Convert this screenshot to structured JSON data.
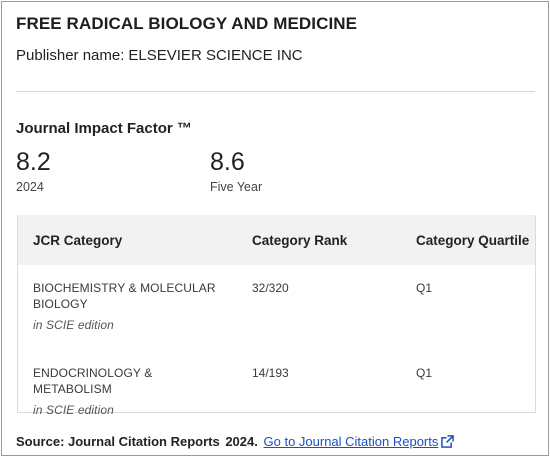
{
  "journal": {
    "title": "FREE RADICAL BIOLOGY AND MEDICINE",
    "publisher_label": "Publisher name:",
    "publisher_value": "ELSEVIER SCIENCE INC"
  },
  "impact_factor": {
    "heading": "Journal Impact Factor ™",
    "current": {
      "value": "8.2",
      "label": "2024"
    },
    "five_year": {
      "value": "8.6",
      "label": "Five Year"
    }
  },
  "category_table": {
    "headers": [
      "JCR Category",
      "Category Rank",
      "Category Quartile"
    ],
    "rows": [
      {
        "category": "BIOCHEMISTRY & MOLECULAR BIOLOGY",
        "edition": "in SCIE edition",
        "rank": "32/320",
        "quartile": "Q1"
      },
      {
        "category": "ENDOCRINOLOGY & METABOLISM",
        "edition": "in SCIE edition",
        "rank": "14/193",
        "quartile": "Q1"
      }
    ]
  },
  "source": {
    "label": "Source: Journal Citation Reports",
    "year": "2024.",
    "link_text": "Go to Journal Citation Reports",
    "link_icon": "external-link-icon",
    "link_color": "#1a4fc4"
  }
}
